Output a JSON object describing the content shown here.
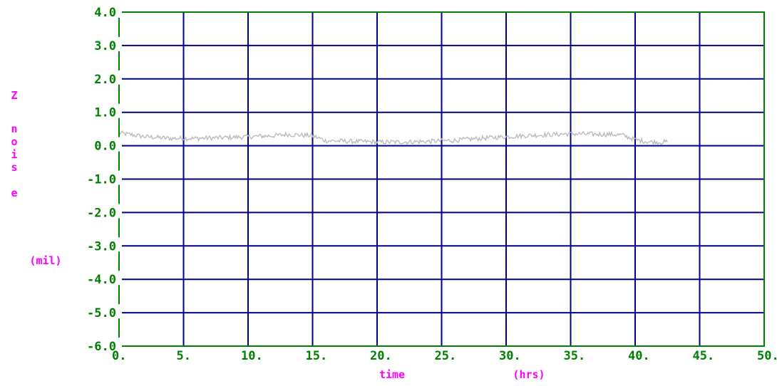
{
  "chart_data": {
    "type": "line",
    "title": "",
    "xlabel": "time",
    "xunit": "(hrs)",
    "ylabel_letters": [
      "Z",
      "n",
      "o",
      "i",
      "s",
      "e"
    ],
    "yunit": "(mil)",
    "xlim": [
      0,
      50
    ],
    "ylim": [
      -6,
      4
    ],
    "grid": true,
    "x_ticks": [
      0,
      5,
      10,
      15,
      20,
      25,
      30,
      35,
      40,
      45,
      50
    ],
    "x_tick_labels": [
      "0.",
      "5.",
      "10.",
      "15.",
      "20.",
      "25.",
      "30.",
      "35.",
      "40.",
      "45.",
      "50."
    ],
    "y_ticks": [
      4,
      3,
      2,
      1,
      0,
      -1,
      -2,
      -3,
      -4,
      -5,
      -6
    ],
    "y_tick_labels": [
      "4.0",
      "3.0",
      "2.0",
      "1.0",
      "0.0",
      "-1.0",
      "-2.0",
      "-3.0",
      "-4.0",
      "-5.0",
      "-6.0"
    ],
    "series": [
      {
        "x": [
          0,
          2,
          4,
          6,
          8,
          10,
          12,
          13,
          14,
          15,
          16,
          18,
          20,
          22,
          24,
          26,
          28,
          30,
          32,
          34,
          35,
          36,
          38,
          39,
          40,
          41,
          42,
          42.5
        ],
        "y": [
          0.38,
          0.27,
          0.22,
          0.22,
          0.24,
          0.27,
          0.3,
          0.34,
          0.32,
          0.3,
          0.15,
          0.13,
          0.11,
          0.11,
          0.13,
          0.16,
          0.22,
          0.27,
          0.31,
          0.34,
          0.36,
          0.35,
          0.34,
          0.32,
          0.18,
          0.12,
          0.1,
          0.11
        ]
      }
    ],
    "colors": {
      "frame": "#008000",
      "grid": "#000080",
      "tick_labels": "#008000",
      "axis_labels": "#ff00ff",
      "series": "#b8b8b8"
    }
  }
}
